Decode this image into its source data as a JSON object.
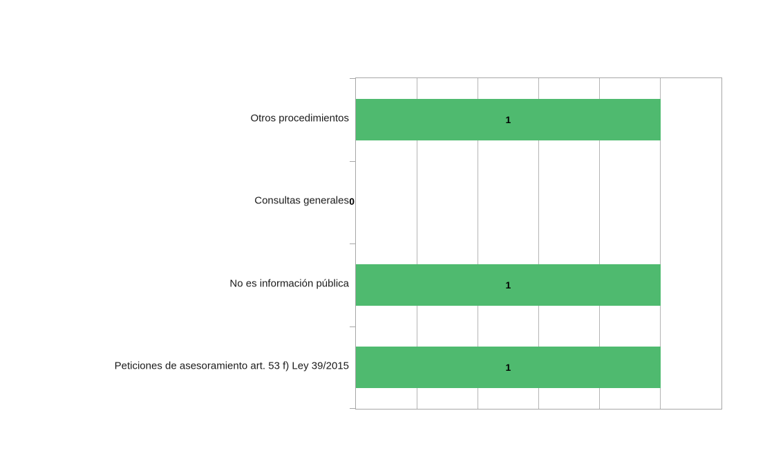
{
  "chart_data": {
    "type": "bar",
    "orientation": "horizontal",
    "title": "",
    "xlabel": "",
    "ylabel": "",
    "categories": [
      "Otros procedimientos",
      "Consultas generales",
      "No es información pública",
      "Peticiones de asesoramiento art. 53 f) Ley 39/2015"
    ],
    "values": [
      1,
      0,
      1,
      1
    ],
    "xlim": [
      0,
      1.2
    ],
    "grid_step": 0.2,
    "grid": true,
    "axis_tick_labels_visible": false,
    "data_labels": true,
    "legend": "none",
    "colors": {
      "bar": "#4fba6f",
      "gridline": "#b3b3b3",
      "plot_border": "#a6a6a6",
      "category_label": "#1a1a1a",
      "value_label": "#000000",
      "background": "#ffffff"
    }
  }
}
